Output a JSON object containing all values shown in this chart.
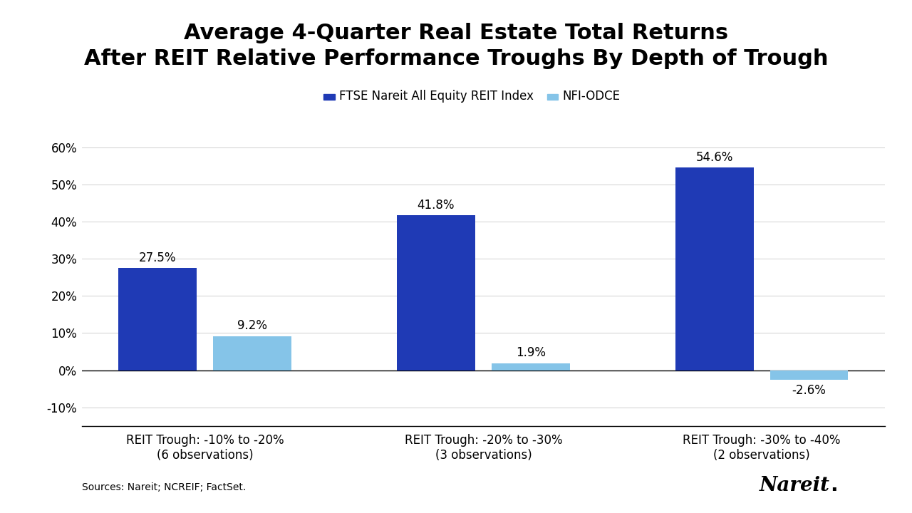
{
  "title_line1": "Average 4-Quarter Real Estate Total Returns",
  "title_line2": "After REIT Relative Performance Troughs By Depth of Trough",
  "categories": [
    "REIT Trough: -10% to -20%\n(6 observations)",
    "REIT Trough: -20% to -30%\n(3 observations)",
    "REIT Trough: -30% to -40%\n(2 observations)"
  ],
  "series": {
    "FTSE Nareit All Equity REIT Index": {
      "values": [
        27.5,
        41.8,
        54.6
      ],
      "color": "#1f3ab5"
    },
    "NFI-ODCE": {
      "values": [
        9.2,
        1.9,
        -2.6
      ],
      "color": "#85c4e8"
    }
  },
  "ylim": [
    -15,
    68
  ],
  "yticks": [
    -10,
    0,
    10,
    20,
    30,
    40,
    50,
    60
  ],
  "ytick_labels": [
    "-10%",
    "0%",
    "10%",
    "20%",
    "30%",
    "40%",
    "50%",
    "60%"
  ],
  "bar_width": 0.28,
  "background_color": "#ffffff",
  "source_text": "Sources: Nareit; NCREIF; FactSet.",
  "nareit_logo_text": "Nareit",
  "nareit_dot": ".",
  "title_fontsize": 22,
  "label_fontsize": 12,
  "tick_fontsize": 12,
  "legend_fontsize": 12,
  "source_fontsize": 10,
  "value_label_fontsize": 12
}
